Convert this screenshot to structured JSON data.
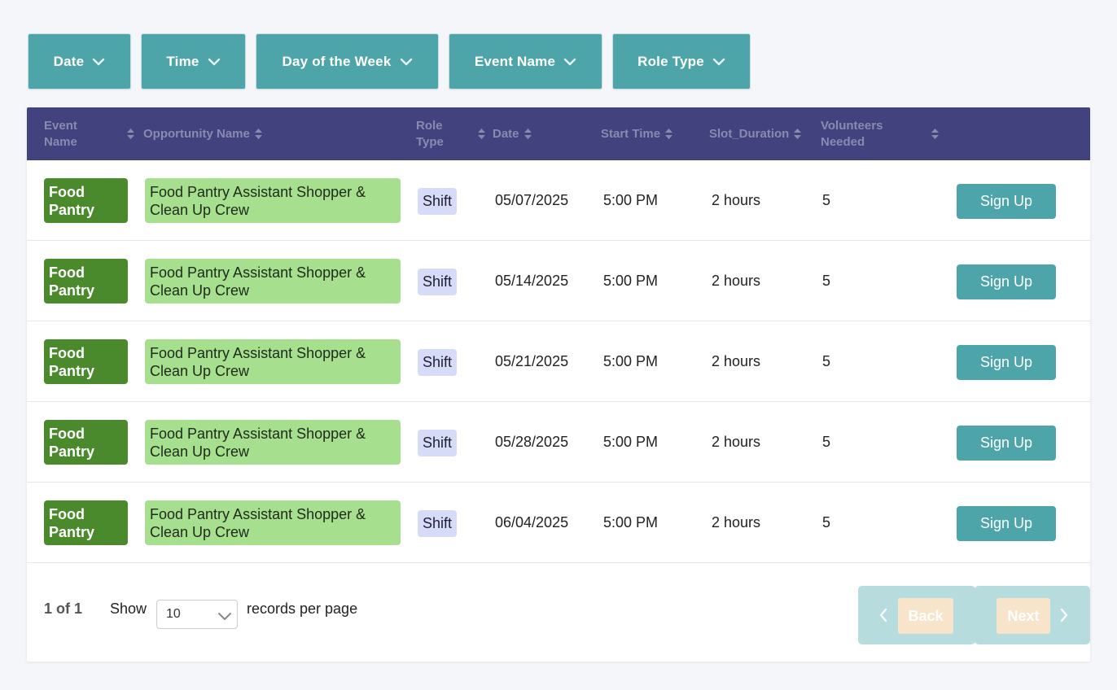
{
  "filters": [
    {
      "label": "Date"
    },
    {
      "label": "Time"
    },
    {
      "label": "Day of the Week"
    },
    {
      "label": "Event Name"
    },
    {
      "label": "Role Type"
    }
  ],
  "table": {
    "headers": {
      "event_name_1": "Event",
      "event_name_2": "Name",
      "opportunity_name": "Opportunity Name",
      "role_type_1": "Role",
      "role_type_2": "Type",
      "date": "Date",
      "start_time": "Start Time",
      "slot_duration": "Slot_Duration",
      "volunteers_needed_1": "Volunteers",
      "volunteers_needed_2": "Needed"
    },
    "rows": [
      {
        "event_line1": "Food",
        "event_line2": "Pantry",
        "opportunity": "Food Pantry Assistant Shopper & Clean Up Crew",
        "role": "Shift",
        "date": "05/07/2025",
        "start_time": "5:00 PM",
        "duration": "2 hours",
        "volunteers": "5",
        "action": "Sign Up"
      },
      {
        "event_line1": "Food",
        "event_line2": "Pantry",
        "opportunity": "Food Pantry Assistant Shopper & Clean Up Crew",
        "role": "Shift",
        "date": "05/14/2025",
        "start_time": "5:00 PM",
        "duration": "2 hours",
        "volunteers": "5",
        "action": "Sign Up"
      },
      {
        "event_line1": "Food",
        "event_line2": "Pantry",
        "opportunity": "Food Pantry Assistant Shopper & Clean Up Crew",
        "role": "Shift",
        "date": "05/21/2025",
        "start_time": "5:00 PM",
        "duration": "2 hours",
        "volunteers": "5",
        "action": "Sign Up"
      },
      {
        "event_line1": "Food",
        "event_line2": "Pantry",
        "opportunity": "Food Pantry Assistant Shopper & Clean Up Crew",
        "role": "Shift",
        "date": "05/28/2025",
        "start_time": "5:00 PM",
        "duration": "2 hours",
        "volunteers": "5",
        "action": "Sign Up"
      },
      {
        "event_line1": "Food",
        "event_line2": "Pantry",
        "opportunity": "Food Pantry Assistant Shopper & Clean Up Crew",
        "role": "Shift",
        "date": "06/04/2025",
        "start_time": "5:00 PM",
        "duration": "2 hours",
        "volunteers": "5",
        "action": "Sign Up"
      }
    ]
  },
  "pagination": {
    "page_info": "1 of 1",
    "show_label": "Show",
    "per_page_value": "10",
    "records_label": "records per page",
    "back_label": "Back",
    "next_label": "Next"
  },
  "colors": {
    "accent": "#4ea5a9",
    "header_bg": "#41427e",
    "event_badge": "#4a8a2c",
    "opportunity_badge": "#a6e08e",
    "role_badge": "#d6dcf8"
  },
  "icons": {
    "filter_chevron": "chevron-down-icon",
    "sort": "sort-icon",
    "back": "chevron-left-icon",
    "next": "chevron-right-icon"
  }
}
